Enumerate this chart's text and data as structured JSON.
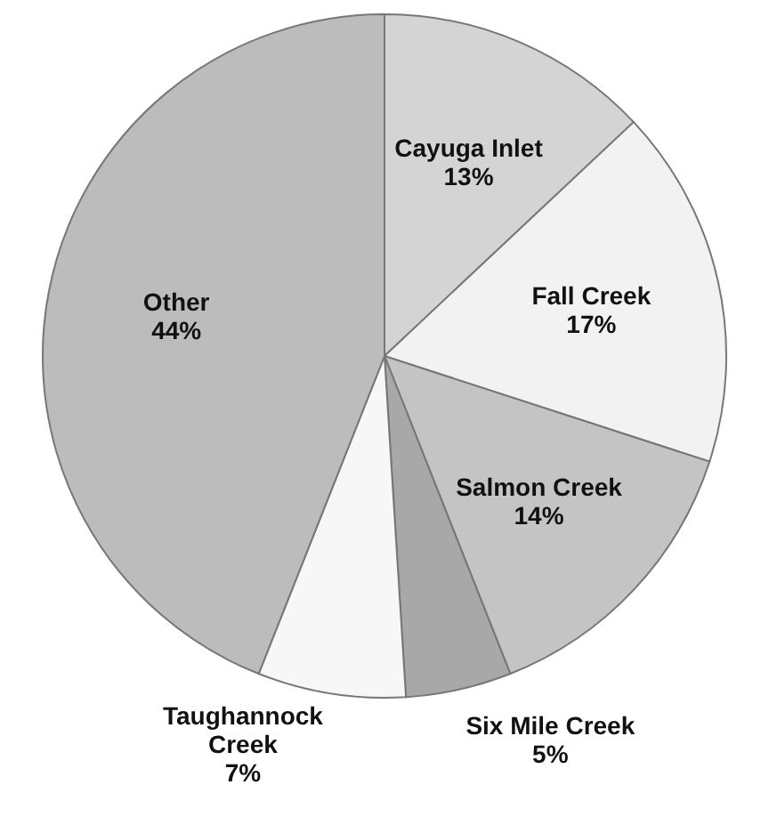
{
  "chart_data": {
    "type": "pie",
    "categories": [
      "Cayuga Inlet",
      "Fall Creek",
      "Salmon Creek",
      "Six Mile Creek",
      "Taughannock Creek",
      "Other"
    ],
    "values": [
      13,
      17,
      14,
      5,
      7,
      44
    ],
    "value_labels": [
      "13%",
      "17%",
      "14%",
      "5%",
      "7%",
      "44%"
    ],
    "colors": [
      "#d4d4d4",
      "#f2f2f2",
      "#c4c4c4",
      "#a8a8a8",
      "#f7f7f7",
      "#bcbcbc"
    ]
  }
}
